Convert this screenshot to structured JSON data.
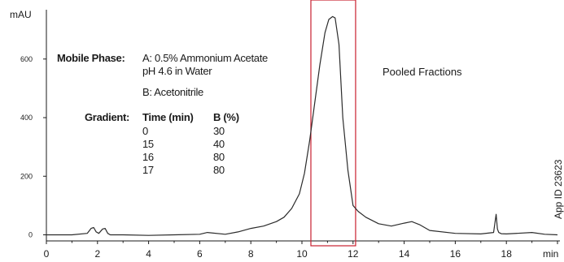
{
  "chart_data": {
    "type": "line",
    "ylabel": "mAU",
    "xlabel": "min",
    "xlim": [
      0,
      20
    ],
    "ylim": [
      -20,
      780
    ],
    "x_ticks": [
      0,
      2,
      4,
      6,
      8,
      10,
      12,
      14,
      16,
      18
    ],
    "y_ticks": [
      0,
      200,
      400,
      600
    ],
    "grid": false,
    "series": [
      {
        "x": [
          0,
          1,
          1.6,
          1.75,
          1.85,
          1.95,
          2.05,
          2.2,
          2.3,
          2.4,
          2.5,
          3,
          4,
          5,
          6,
          6.3,
          7,
          7.5,
          8,
          8.5,
          9,
          9.3,
          9.6,
          9.9,
          10.1,
          10.3,
          10.5,
          10.7,
          10.9,
          11.05,
          11.2,
          11.3,
          11.45,
          11.6,
          11.8,
          12.0,
          12.2,
          12.5,
          13,
          13.5,
          14,
          14.3,
          14.6,
          15,
          16,
          17,
          17.5,
          17.6,
          17.65,
          17.7,
          17.8,
          18,
          19,
          19.5,
          20
        ],
        "y": [
          0,
          0,
          5,
          22,
          25,
          10,
          5,
          20,
          22,
          5,
          0,
          0,
          -2,
          0,
          2,
          8,
          2,
          10,
          22,
          30,
          45,
          60,
          90,
          140,
          210,
          320,
          450,
          580,
          690,
          735,
          745,
          740,
          650,
          400,
          220,
          100,
          80,
          60,
          38,
          30,
          40,
          45,
          35,
          15,
          5,
          3,
          8,
          70,
          20,
          8,
          4,
          3,
          8,
          2,
          0
        ]
      }
    ],
    "annotations": {
      "pooled_label": "Pooled Fractions",
      "pooled_range": [
        10.35,
        12.1
      ],
      "app_id": "App ID 23623"
    }
  },
  "conditions": {
    "mobile_phase_label": "Mobile Phase:",
    "mobile_a_line1": "A: 0.5% Ammonium Acetate",
    "mobile_a_line2": "pH 4.6 in Water",
    "mobile_b": "B: Acetonitrile",
    "gradient_label": "Gradient:",
    "col_time": "Time (min)",
    "col_b": "B (%)",
    "rows": [
      [
        "0",
        "30"
      ],
      [
        "15",
        "40"
      ],
      [
        "16",
        "80"
      ],
      [
        "17",
        "80"
      ]
    ]
  },
  "colors": {
    "trace": "#2b2b2b",
    "pooled_box": "#c8202f",
    "axis": "#1a1a1a"
  }
}
